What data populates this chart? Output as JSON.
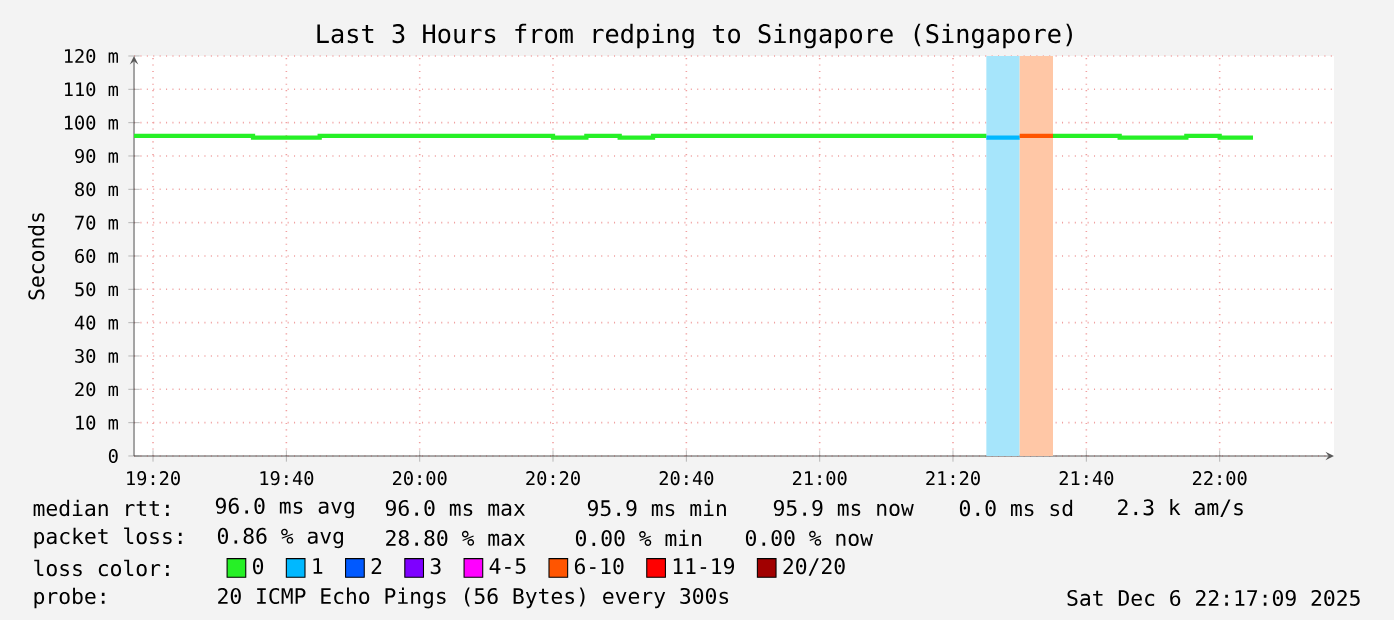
{
  "chart_data": {
    "type": "step",
    "title": "Last 3 Hours from redping to Singapore (Singapore)",
    "ylabel": "Seconds",
    "xlim": [
      19.2858,
      22.2858
    ],
    "xticks": [
      {
        "value": 19.3333,
        "label": "19:20"
      },
      {
        "value": 19.6667,
        "label": "19:40"
      },
      {
        "value": 20,
        "label": "20:00"
      },
      {
        "value": 20.3333,
        "label": "20:20"
      },
      {
        "value": 20.6667,
        "label": "20:40"
      },
      {
        "value": 21,
        "label": "21:00"
      },
      {
        "value": 21.3333,
        "label": "21:20"
      },
      {
        "value": 21.6667,
        "label": "21:40"
      },
      {
        "value": 22,
        "label": "22:00"
      }
    ],
    "ylim": [
      0,
      120
    ],
    "yticks": [
      0,
      {
        "value": 10,
        "label": "10 m"
      },
      {
        "value": 20,
        "label": "20 m"
      },
      {
        "value": 30,
        "label": "30 m"
      },
      {
        "value": 40,
        "label": "40 m"
      },
      {
        "value": 50,
        "label": "50 m"
      },
      {
        "value": 60,
        "label": "60 m"
      },
      {
        "value": 70,
        "label": "70 m"
      },
      {
        "value": 80,
        "label": "80 m"
      },
      {
        "value": 90,
        "label": "90 m"
      },
      {
        "value": 100,
        "label": "100 m"
      },
      {
        "value": 110,
        "label": "110 m"
      },
      {
        "value": 120,
        "label": "120 m"
      }
    ],
    "grid": true,
    "legend": "bottom",
    "series": [
      {
        "name": "0",
        "color": "#26f026",
        "x": [
          19.2858,
          19.5833,
          19.75,
          20.3333,
          20.4167,
          20.5,
          20.5833,
          21.4167,
          21.45,
          21.5833,
          21.75,
          21.9167,
          22.0,
          22.0833
        ],
        "values": [
          96,
          95.5,
          96,
          95.5,
          96,
          95.5,
          96,
          96,
          null,
          96,
          95.5,
          96,
          95.5,
          95.5
        ]
      },
      {
        "name": "1",
        "color": "#00b8ff",
        "x": [
          21.4167,
          21.5
        ],
        "values": [
          95.5,
          95.5
        ]
      },
      {
        "name": "2",
        "color": "#0059ff"
      },
      {
        "name": "3",
        "color": "#7e00ff"
      },
      {
        "name": "4-5",
        "color": "#ff00ff"
      },
      {
        "name": "6-10",
        "color": "#ff5500",
        "x": [
          21.5,
          21.5833
        ],
        "values": [
          96,
          96
        ]
      },
      {
        "name": "11-19",
        "color": "#ff0000"
      },
      {
        "name": "20/20",
        "color": "#a10000"
      }
    ],
    "bands": [
      {
        "axis": "x",
        "from": 21.4167,
        "to": 21.5,
        "color": "#a6e5fb"
      },
      {
        "axis": "x",
        "from": 21.5,
        "to": 21.5833,
        "color": "#ffc7a6"
      }
    ],
    "annotations": [
      "median rtt:",
      "96.0 ms avg",
      "96.0 ms max",
      "95.9 ms min",
      "95.9 ms now",
      "0.0 ms sd",
      "2.3 k am/s",
      "packet loss:",
      "0.86 % avg",
      "28.80 % max",
      "0.00 % min",
      "0.00 % now",
      "loss color:",
      "probe:",
      "20 ICMP Echo Pings (56 Bytes) every 300s",
      "Sat Dec  6 22:17:09 2025"
    ]
  }
}
